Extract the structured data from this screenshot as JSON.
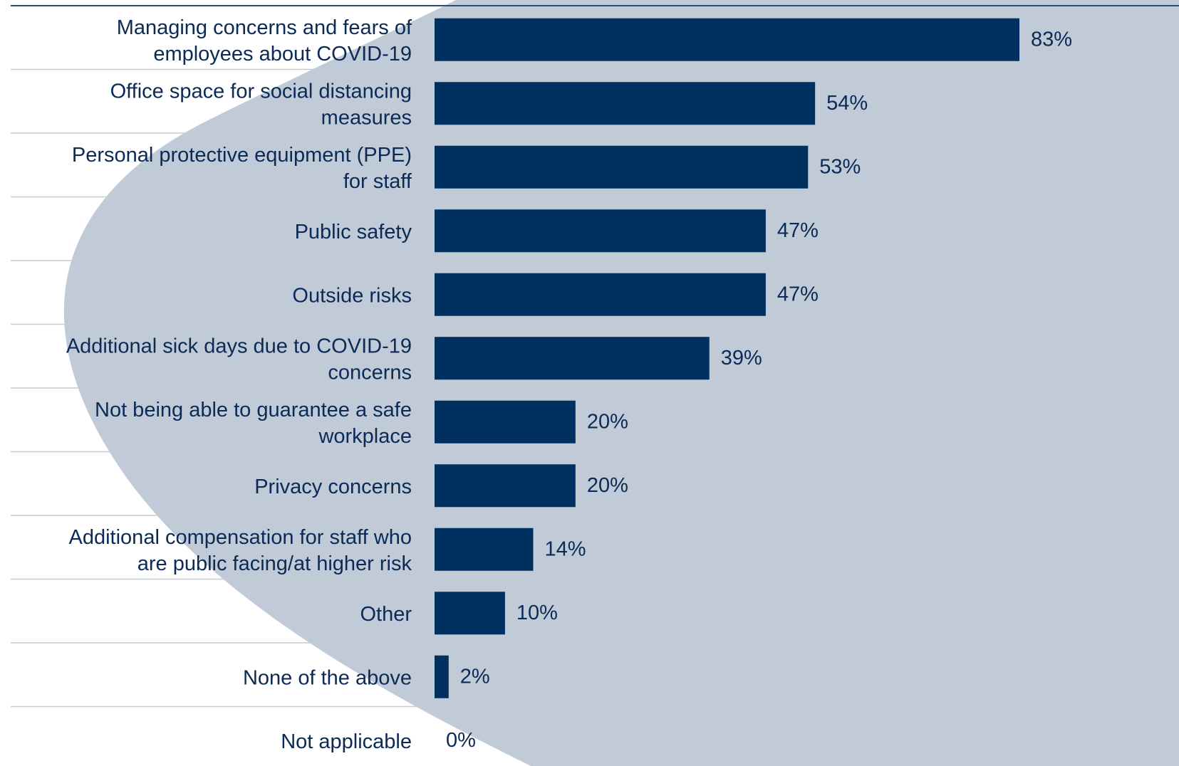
{
  "colors": {
    "bar": "#00305f",
    "text": "#0b2a55",
    "background_shape": "#c0cbd7",
    "row_divider": "#c4cbd3",
    "top_rule": "#2a4a6e"
  },
  "chart_data": {
    "type": "bar",
    "orientation": "horizontal",
    "categories": [
      [
        "Managing concerns and fears of",
        "employees about COVID-19"
      ],
      [
        "Office space for social distancing",
        "measures"
      ],
      [
        "Personal protective equipment (PPE)",
        "for staff"
      ],
      [
        "Public safety"
      ],
      [
        "Outside risks"
      ],
      [
        "Additional sick days due to COVID-19",
        "concerns"
      ],
      [
        "Not being able to guarantee a safe",
        "workplace"
      ],
      [
        "Privacy concerns"
      ],
      [
        "Additional compensation for staff who",
        "are public facing/at higher risk"
      ],
      [
        "Other"
      ],
      [
        "None of the above"
      ],
      [
        "Not applicable"
      ]
    ],
    "values": [
      83,
      54,
      53,
      47,
      47,
      39,
      20,
      20,
      14,
      10,
      2,
      0
    ],
    "value_labels": [
      "83%",
      "54%",
      "53%",
      "47%",
      "47%",
      "39%",
      "20%",
      "20%",
      "14%",
      "10%",
      "2%",
      "0%"
    ],
    "xlim": [
      0,
      100
    ],
    "grid": false,
    "legend": "none"
  }
}
